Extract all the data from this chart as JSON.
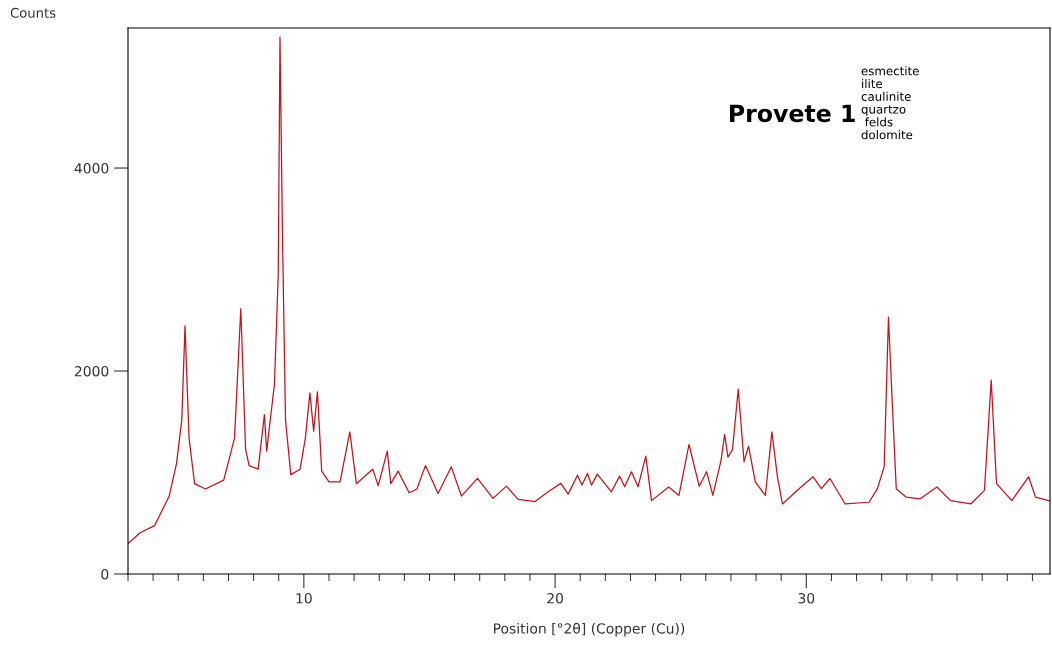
{
  "chart_data": {
    "type": "line",
    "xlabel": "Position [°2θ] (Copper (Cu))",
    "ylabel": "Counts",
    "annotations": [
      "Provete 1",
      "esmectite\nilite\ncaulinite\nquartzo\n felds\ndolomite"
    ],
    "xlim": [
      3,
      39.7
    ],
    "ylim": [
      0,
      5380
    ],
    "xticks": [
      {
        "value": 3,
        "label": null
      },
      {
        "value": 4,
        "label": null
      },
      {
        "value": 5,
        "label": null
      },
      {
        "value": 6,
        "label": null
      },
      {
        "value": 7,
        "label": null
      },
      {
        "value": 8,
        "label": null
      },
      {
        "value": 9,
        "label": null
      },
      10,
      {
        "value": 11,
        "label": null
      },
      {
        "value": 12,
        "label": null
      },
      {
        "value": 13,
        "label": null
      },
      {
        "value": 14,
        "label": null
      },
      {
        "value": 15,
        "label": null
      },
      {
        "value": 16,
        "label": null
      },
      {
        "value": 17,
        "label": null
      },
      {
        "value": 18,
        "label": null
      },
      {
        "value": 19,
        "label": null
      },
      20,
      {
        "value": 21,
        "label": null
      },
      {
        "value": 22,
        "label": null
      },
      {
        "value": 23,
        "label": null
      },
      {
        "value": 24,
        "label": null
      },
      {
        "value": 25,
        "label": null
      },
      {
        "value": 26,
        "label": null
      },
      {
        "value": 27,
        "label": null
      },
      {
        "value": 28,
        "label": null
      },
      {
        "value": 29,
        "label": null
      },
      30,
      {
        "value": 31,
        "label": null
      },
      {
        "value": 32,
        "label": null
      },
      {
        "value": 33,
        "label": null
      },
      {
        "value": 34,
        "label": null
      },
      {
        "value": 35,
        "label": null
      },
      {
        "value": 36,
        "label": null
      },
      {
        "value": 37,
        "label": null
      },
      {
        "value": 38,
        "label": null
      },
      {
        "value": 39,
        "label": null
      }
    ],
    "yticks": [
      0,
      2000,
      4000
    ],
    "grid": false,
    "marker": "none",
    "line_style": "solid",
    "series": [
      {
        "color": "#c0141c",
        "x": [
          3.0,
          3.48,
          4.06,
          4.64,
          4.93,
          5.14,
          5.27,
          5.43,
          5.65,
          6.08,
          6.81,
          7.24,
          7.49,
          7.68,
          7.82,
          8.18,
          8.43,
          8.52,
          8.83,
          8.98,
          9.05,
          9.15,
          9.27,
          9.48,
          9.85,
          10.06,
          10.24,
          10.39,
          10.54,
          10.71,
          11.0,
          11.44,
          11.83,
          12.09,
          12.74,
          12.96,
          13.32,
          13.46,
          13.75,
          14.19,
          14.5,
          14.84,
          15.34,
          15.87,
          16.27,
          16.91,
          17.53,
          18.06,
          18.53,
          19.19,
          19.72,
          20.23,
          20.52,
          20.89,
          21.07,
          21.29,
          21.45,
          21.68,
          22.24,
          22.57,
          22.77,
          23.04,
          23.3,
          23.61,
          23.84,
          24.52,
          24.93,
          25.33,
          25.74,
          26.03,
          26.28,
          26.61,
          26.75,
          26.88,
          27.06,
          27.29,
          27.52,
          27.7,
          27.97,
          28.37,
          28.63,
          28.85,
          29.05,
          29.79,
          30.27,
          30.6,
          30.94,
          31.55,
          32.5,
          32.83,
          33.1,
          33.27,
          33.42,
          33.58,
          33.98,
          34.52,
          35.2,
          35.74,
          36.55,
          37.09,
          37.36,
          37.57,
          38.18,
          38.85,
          39.12,
          39.66
        ],
        "values": [
          300,
          406,
          477,
          768,
          1087,
          1516,
          2446,
          1339,
          890,
          837,
          925,
          1339,
          2614,
          1230,
          1068,
          1033,
          1570,
          1211,
          1874,
          2948,
          5291,
          3307,
          1516,
          979,
          1033,
          1339,
          1785,
          1407,
          1795,
          1014,
          907,
          907,
          1401,
          890,
          1033,
          871,
          1211,
          890,
          1014,
          800,
          837,
          1068,
          794,
          1056,
          768,
          942,
          745,
          866,
          735,
          712,
          810,
          893,
          787,
          974,
          876,
          991,
          876,
          984,
          810,
          964,
          859,
          1007,
          859,
          1161,
          723,
          857,
          774,
          1276,
          864,
          1008,
          774,
          1125,
          1376,
          1152,
          1225,
          1821,
          1108,
          1259,
          907,
          774,
          1400,
          958,
          690,
          857,
          958,
          841,
          941,
          690,
          707,
          841,
          1058,
          2530,
          1693,
          841,
          757,
          740,
          857,
          723,
          690,
          824,
          1910,
          891,
          723,
          958,
          757,
          723
        ]
      }
    ]
  }
}
